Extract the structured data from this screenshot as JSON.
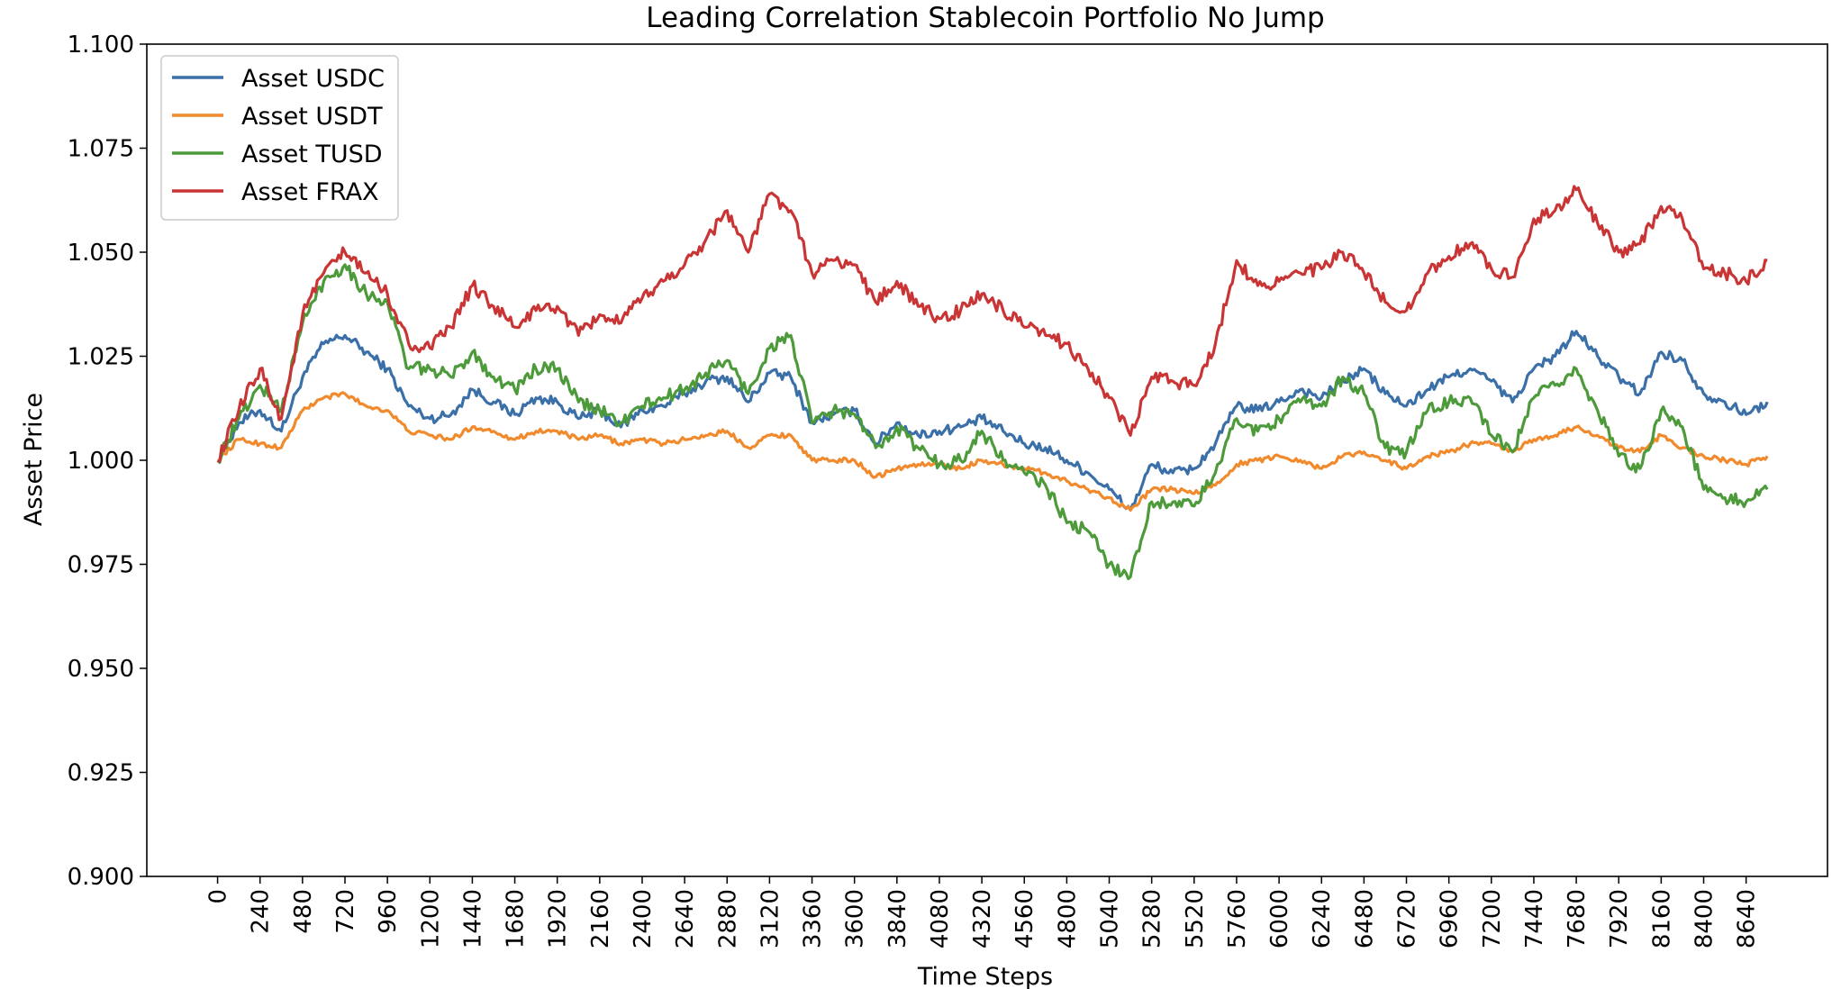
{
  "chart_data": {
    "type": "line",
    "title": "Leading Correlation Stablecoin Portfolio No Jump",
    "xlabel": "Time Steps",
    "ylabel": "Asset Price",
    "xlim": [
      -400,
      9100
    ],
    "ylim": [
      0.9,
      1.1
    ],
    "x_ticks": [
      0,
      240,
      480,
      720,
      960,
      1200,
      1440,
      1680,
      1920,
      2160,
      2400,
      2640,
      2880,
      3120,
      3360,
      3600,
      3840,
      4080,
      4320,
      4560,
      4800,
      5040,
      5280,
      5520,
      5760,
      6000,
      6240,
      6480,
      6720,
      6960,
      7200,
      7440,
      7680,
      7920,
      8160,
      8400,
      8640
    ],
    "y_ticks": [
      "0.900",
      "0.925",
      "0.950",
      "0.975",
      "1.000",
      "1.025",
      "1.050",
      "1.075",
      "1.100"
    ],
    "grid": false,
    "legend_position": "upper-left",
    "x": [
      0,
      120,
      240,
      360,
      480,
      600,
      720,
      840,
      960,
      1080,
      1200,
      1320,
      1440,
      1560,
      1680,
      1800,
      1920,
      2040,
      2160,
      2280,
      2400,
      2520,
      2640,
      2760,
      2880,
      3000,
      3120,
      3240,
      3360,
      3480,
      3600,
      3720,
      3840,
      3960,
      4080,
      4200,
      4320,
      4440,
      4560,
      4680,
      4800,
      4920,
      5040,
      5160,
      5280,
      5400,
      5520,
      5640,
      5760,
      5880,
      6000,
      6120,
      6240,
      6360,
      6480,
      6600,
      6720,
      6840,
      6960,
      7080,
      7200,
      7320,
      7440,
      7560,
      7680,
      7800,
      7920,
      8040,
      8160,
      8280,
      8400,
      8520,
      8640,
      8760
    ],
    "series": [
      {
        "name": "Asset USDC",
        "color": "#3a6fa8",
        "values": [
          1.0,
          1.009,
          1.012,
          1.007,
          1.02,
          1.028,
          1.03,
          1.026,
          1.022,
          1.013,
          1.01,
          1.011,
          1.017,
          1.014,
          1.011,
          1.015,
          1.014,
          1.01,
          1.012,
          1.008,
          1.012,
          1.013,
          1.016,
          1.019,
          1.02,
          1.014,
          1.021,
          1.02,
          1.009,
          1.011,
          1.012,
          1.004,
          1.009,
          1.006,
          1.007,
          1.008,
          1.01,
          1.007,
          1.004,
          1.003,
          1.0,
          0.997,
          0.993,
          0.988,
          0.999,
          0.997,
          0.998,
          1.004,
          1.013,
          1.012,
          1.014,
          1.017,
          1.015,
          1.019,
          1.022,
          1.016,
          1.013,
          1.017,
          1.02,
          1.022,
          1.019,
          1.014,
          1.022,
          1.025,
          1.031,
          1.025,
          1.02,
          1.016,
          1.026,
          1.024,
          1.016,
          1.014,
          1.011,
          1.014
        ]
      },
      {
        "name": "Asset USDT",
        "color": "#f08a2c",
        "values": [
          1.0,
          1.005,
          1.004,
          1.003,
          1.012,
          1.015,
          1.016,
          1.013,
          1.012,
          1.007,
          1.006,
          1.005,
          1.008,
          1.007,
          1.005,
          1.007,
          1.007,
          1.005,
          1.006,
          1.004,
          1.005,
          1.004,
          1.005,
          1.006,
          1.007,
          1.003,
          1.006,
          1.006,
          1.0,
          1.0,
          1.0,
          0.996,
          0.998,
          0.999,
          0.999,
          0.998,
          1.0,
          0.999,
          0.998,
          0.997,
          0.995,
          0.993,
          0.991,
          0.988,
          0.993,
          0.993,
          0.992,
          0.994,
          0.999,
          1.0,
          1.001,
          1.0,
          0.998,
          1.001,
          1.002,
          1.0,
          0.998,
          1.001,
          1.002,
          1.004,
          1.004,
          1.002,
          1.005,
          1.006,
          1.008,
          1.006,
          1.003,
          1.002,
          1.006,
          1.003,
          1.001,
          1.0,
          0.999,
          1.001
        ]
      },
      {
        "name": "Asset TUSD",
        "color": "#4c9a3a",
        "values": [
          1.0,
          1.01,
          1.018,
          1.012,
          1.033,
          1.043,
          1.047,
          1.04,
          1.038,
          1.022,
          1.022,
          1.02,
          1.026,
          1.02,
          1.017,
          1.022,
          1.022,
          1.014,
          1.012,
          1.009,
          1.013,
          1.015,
          1.017,
          1.021,
          1.024,
          1.016,
          1.027,
          1.03,
          1.009,
          1.012,
          1.011,
          1.003,
          1.008,
          1.003,
          0.999,
          1.0,
          1.007,
          1.0,
          0.997,
          0.994,
          0.985,
          0.983,
          0.975,
          0.972,
          0.99,
          0.99,
          0.989,
          0.997,
          1.01,
          1.007,
          1.01,
          1.014,
          1.013,
          1.02,
          1.016,
          1.003,
          1.002,
          1.012,
          1.014,
          1.015,
          1.006,
          1.002,
          1.015,
          1.018,
          1.022,
          1.012,
          1.001,
          0.998,
          1.012,
          1.008,
          0.993,
          0.991,
          0.99,
          0.993
        ]
      },
      {
        "name": "Asset FRAX",
        "color": "#c93434",
        "values": [
          1.0,
          1.012,
          1.022,
          1.01,
          1.035,
          1.045,
          1.05,
          1.045,
          1.04,
          1.028,
          1.027,
          1.032,
          1.042,
          1.037,
          1.032,
          1.036,
          1.037,
          1.03,
          1.035,
          1.033,
          1.039,
          1.043,
          1.047,
          1.053,
          1.06,
          1.05,
          1.064,
          1.06,
          1.045,
          1.048,
          1.047,
          1.038,
          1.043,
          1.037,
          1.034,
          1.036,
          1.04,
          1.036,
          1.032,
          1.03,
          1.028,
          1.022,
          1.015,
          1.006,
          1.02,
          1.019,
          1.018,
          1.028,
          1.048,
          1.042,
          1.043,
          1.045,
          1.046,
          1.05,
          1.045,
          1.038,
          1.036,
          1.045,
          1.049,
          1.052,
          1.046,
          1.044,
          1.058,
          1.06,
          1.065,
          1.057,
          1.05,
          1.052,
          1.061,
          1.058,
          1.046,
          1.045,
          1.043,
          1.048
        ]
      }
    ]
  }
}
